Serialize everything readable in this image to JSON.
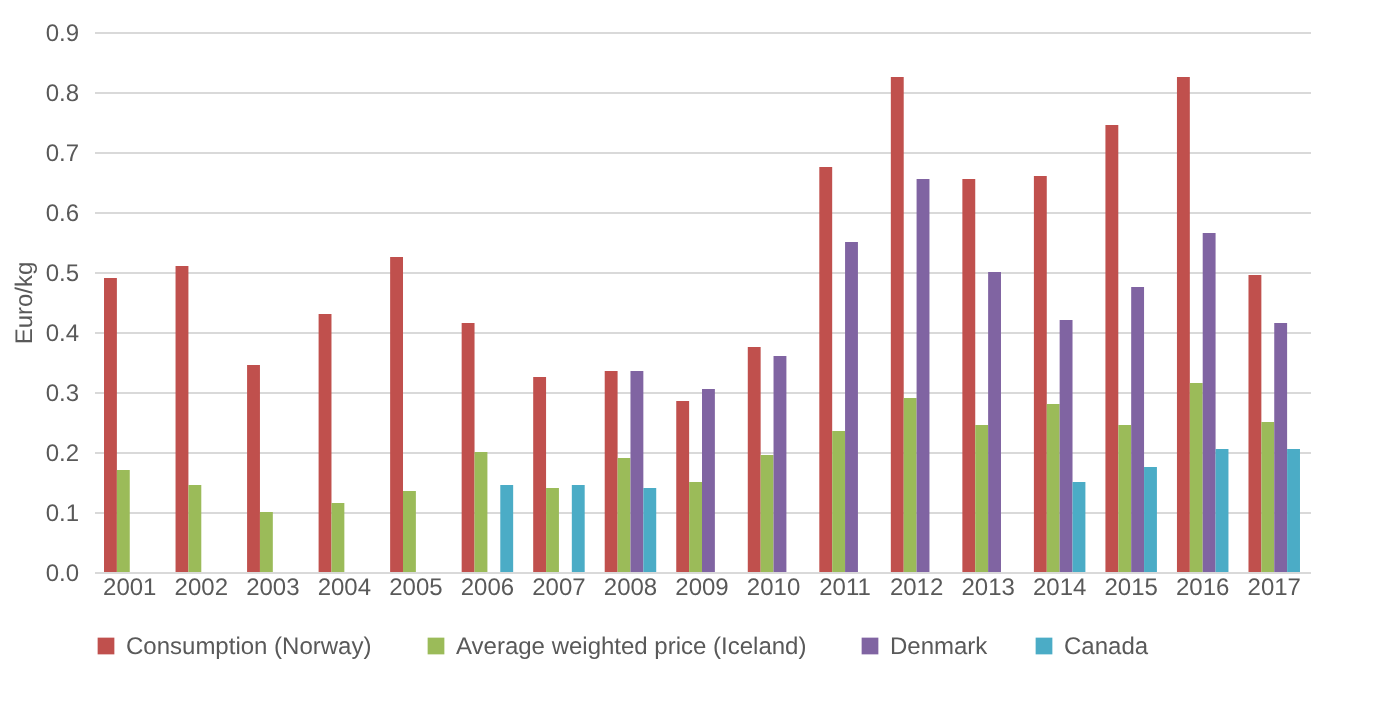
{
  "chart_data": {
    "type": "bar",
    "ylabel": "Euro/kg",
    "categories": [
      "2001",
      "2002",
      "2003",
      "2004",
      "2005",
      "2006",
      "2007",
      "2008",
      "2009",
      "2010",
      "2011",
      "2012",
      "2013",
      "2014",
      "2015",
      "2016",
      "2017"
    ],
    "series": [
      {
        "name": "Consumption  (Norway)",
        "color": "#c0504d",
        "values": [
          0.49,
          0.51,
          0.345,
          0.43,
          0.525,
          0.415,
          0.325,
          0.335,
          0.285,
          0.375,
          0.675,
          0.825,
          0.655,
          0.66,
          0.745,
          0.825,
          0.495
        ]
      },
      {
        "name": "Average weighted price  (Iceland)",
        "color": "#9bbb59",
        "values": [
          0.17,
          0.145,
          0.1,
          0.115,
          0.135,
          0.2,
          0.14,
          0.19,
          0.15,
          0.195,
          0.235,
          0.29,
          0.245,
          0.28,
          0.245,
          0.315,
          0.25
        ]
      },
      {
        "name": "Denmark",
        "color": "#8064a2",
        "values": [
          null,
          null,
          null,
          null,
          null,
          null,
          null,
          0.335,
          0.305,
          0.36,
          0.55,
          0.655,
          0.5,
          0.42,
          0.475,
          0.565,
          0.415
        ]
      },
      {
        "name": "Canada",
        "color": "#4bacc6",
        "values": [
          null,
          null,
          null,
          null,
          null,
          0.145,
          0.145,
          0.14,
          null,
          null,
          null,
          null,
          null,
          0.15,
          0.175,
          0.205,
          0.205
        ]
      }
    ],
    "ylim": [
      0,
      0.9
    ],
    "yticks": [
      {
        "value": 0,
        "label": "0.0"
      },
      0.1,
      0.2,
      0.3,
      0.4,
      0.5,
      0.6,
      0.7,
      0.8,
      0.9
    ],
    "grid": "y",
    "legend": "bottom"
  }
}
